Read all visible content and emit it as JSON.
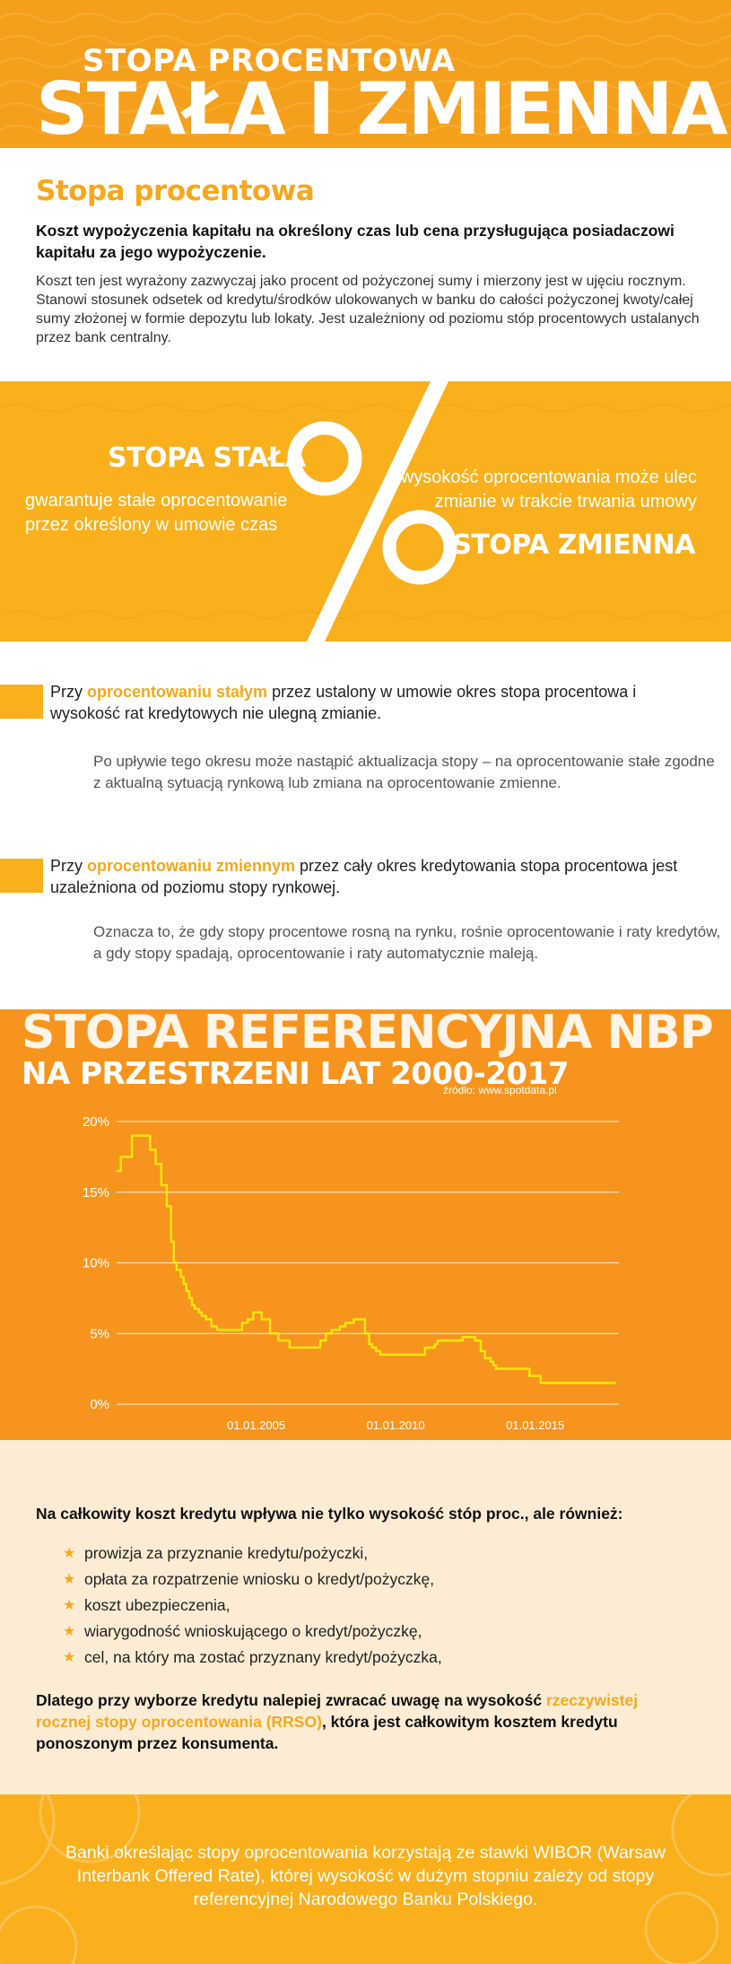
{
  "header": {
    "subtitle": "STOPA PROCENTOWA",
    "title": "STAŁA I ZMIENNA"
  },
  "intro": {
    "title": "Stopa procentowa",
    "lead": "Koszt wypożyczenia kapitału na określony czas lub cena przysługująca posiadaczowi kapitału za jego wypożyczenie.",
    "body": "Koszt ten jest wyrażony zazwyczaj jako procent od pożyczonej sumy i mierzony jest w ujęciu rocznym. Stanowi stosunek odsetek od kredytu/środków ulokowanych w banku do całości pożyczonej kwoty/całej sumy złożonej w formie depozytu lub lokaty. Jest uzależniony od poziomu stóp procentowych ustalanych przez bank centralny."
  },
  "band": {
    "fixed_title": "STOPA STAŁA",
    "fixed_desc": "gwarantuje stałe oprocentowanie przez określony w umowie czas",
    "variable_desc": "wysokość oprocentowania może ulec zmianie w trakcie trwania umowy",
    "variable_title": "STOPA ZMIENNA"
  },
  "details": {
    "fixed": {
      "prefix": "Przy ",
      "highlight": "oprocentowaniu stałym",
      "suffix": " przez ustalony w umowie okres stopa procentowa i wysokość rat kredytowych nie ulegną zmianie.",
      "note": "Po upływie tego okresu może nastąpić aktualizacja stopy – na oprocentowanie stałe zgodne z aktualną sytuacją rynkową lub zmiana na oprocentowanie zmienne."
    },
    "variable": {
      "prefix": "Przy ",
      "highlight": "oprocentowaniu zmiennym",
      "suffix": " przez cały okres kredytowania stopa procentowa jest uzależniona od poziomu stopy rynkowej.",
      "note": "Oznacza to, że gdy stopy procentowe rosną na rynku, rośnie oprocentowanie i raty kredytów, a gdy stopy spadają, oprocentowanie i raty automatycznie maleją."
    }
  },
  "chart_data": {
    "type": "line",
    "title": "STOPA REFERENCYJNA NBP",
    "subtitle": "NA PRZESTRZENI LAT 2000-2017",
    "source": "źródło: www.spotdata.pl",
    "xlabel": "",
    "ylabel": "",
    "x_ticks": [
      "01.01.2005",
      "01.01.2010",
      "01.01.2015"
    ],
    "y_ticks": [
      "0%",
      "5%",
      "10%",
      "15%",
      "20%"
    ],
    "xlim": [
      2000.0,
      2018.0
    ],
    "ylim": [
      0,
      20
    ],
    "grid": true,
    "legend": "none",
    "line_color": "#f5e60a",
    "series": [
      {
        "x": [
          2000.0,
          2000.15,
          2000.15,
          2000.55,
          2000.55,
          2000.75,
          2000.75,
          2001.2,
          2001.2,
          2001.4,
          2001.4,
          2001.6,
          2001.6,
          2001.8,
          2001.8,
          2001.95,
          2001.95,
          2002.05,
          2002.05,
          2002.15,
          2002.15,
          2002.3,
          2002.3,
          2002.4,
          2002.4,
          2002.5,
          2002.5,
          2002.6,
          2002.6,
          2002.7,
          2002.7,
          2002.8,
          2002.8,
          2002.95,
          2002.95,
          2003.05,
          2003.05,
          2003.2,
          2003.2,
          2003.4,
          2003.4,
          2003.6,
          2003.6,
          2004.5,
          2004.5,
          2004.7,
          2004.7,
          2004.9,
          2004.9,
          2005.2,
          2005.2,
          2005.5,
          2005.5,
          2005.8,
          2005.8,
          2006.2,
          2006.2,
          2006.4,
          2006.4,
          2007.3,
          2007.3,
          2007.5,
          2007.5,
          2007.7,
          2007.7,
          2008.0,
          2008.0,
          2008.2,
          2008.2,
          2008.5,
          2008.5,
          2008.9,
          2008.9,
          2009.05,
          2009.05,
          2009.15,
          2009.15,
          2009.3,
          2009.3,
          2009.45,
          2009.45,
          2011.05,
          2011.05,
          2011.4,
          2011.4,
          2011.5,
          2011.5,
          2012.4,
          2012.4,
          2012.85,
          2012.85,
          2013.05,
          2013.05,
          2013.2,
          2013.2,
          2013.4,
          2013.4,
          2013.5,
          2013.5,
          2013.6,
          2013.6,
          2014.8,
          2014.8,
          2015.2,
          2015.2,
          2017.9
        ],
        "y": [
          16.5,
          16.5,
          17.5,
          17.5,
          19.0,
          19.0,
          19.0,
          19.0,
          18.0,
          18.0,
          17.0,
          17.0,
          15.5,
          15.5,
          14.0,
          14.0,
          11.5,
          11.5,
          10.0,
          10.0,
          9.5,
          9.5,
          9.0,
          9.0,
          8.5,
          8.5,
          8.0,
          8.0,
          7.5,
          7.5,
          7.0,
          7.0,
          6.75,
          6.75,
          6.5,
          6.5,
          6.25,
          6.25,
          6.0,
          6.0,
          5.5,
          5.5,
          5.25,
          5.25,
          5.75,
          5.75,
          6.0,
          6.0,
          6.5,
          6.5,
          6.0,
          6.0,
          5.0,
          5.0,
          4.5,
          4.5,
          4.0,
          4.0,
          4.0,
          4.0,
          4.5,
          4.5,
          5.0,
          5.0,
          5.25,
          5.25,
          5.5,
          5.5,
          5.75,
          5.75,
          6.0,
          6.0,
          5.0,
          5.0,
          4.25,
          4.25,
          4.0,
          4.0,
          3.75,
          3.75,
          3.5,
          3.5,
          4.0,
          4.0,
          4.25,
          4.25,
          4.5,
          4.5,
          4.75,
          4.75,
          4.5,
          4.5,
          3.75,
          3.75,
          3.25,
          3.25,
          3.0,
          3.0,
          2.75,
          2.75,
          2.5,
          2.5,
          2.0,
          2.0,
          1.5,
          1.5
        ]
      }
    ]
  },
  "costs": {
    "lead": "Na całkowity koszt kredytu wpływa nie tylko wysokość stóp proc., ale również:",
    "items": [
      "prowizja za przyznanie kredytu/pożyczki,",
      "opłata za rozpatrzenie wniosku o kredyt/pożyczkę,",
      "koszt ubezpieczenia,",
      "wiarygodność wnioskującego o kredyt/pożyczkę,",
      "cel, na który ma zostać przyznany kredyt/pożyczka,"
    ],
    "final_prefix": "Dlatego przy wyborze kredytu nalepiej zwracać uwagę na wysokość ",
    "final_highlight": "rzeczywistej rocznej stopy oprocentowania (RRSO)",
    "final_suffix": ", która jest całkowitym kosztem kredytu ponoszonym przez konsumenta."
  },
  "footer": {
    "text": "Banki określając stopy oprocentowania korzystają ze stawki WIBOR (Warsaw Interbank Offered Rate), której wysokość w dużym stopniu zależy od stopy referencyjnej Narodowego Banku Polskiego."
  },
  "colors": {
    "header_orange": "#f5a01c",
    "band_yellow": "#f9b01c",
    "chart_orange": "#f7941d",
    "highlight": "#f5a81c",
    "costs_bg": "#fdecd4"
  }
}
